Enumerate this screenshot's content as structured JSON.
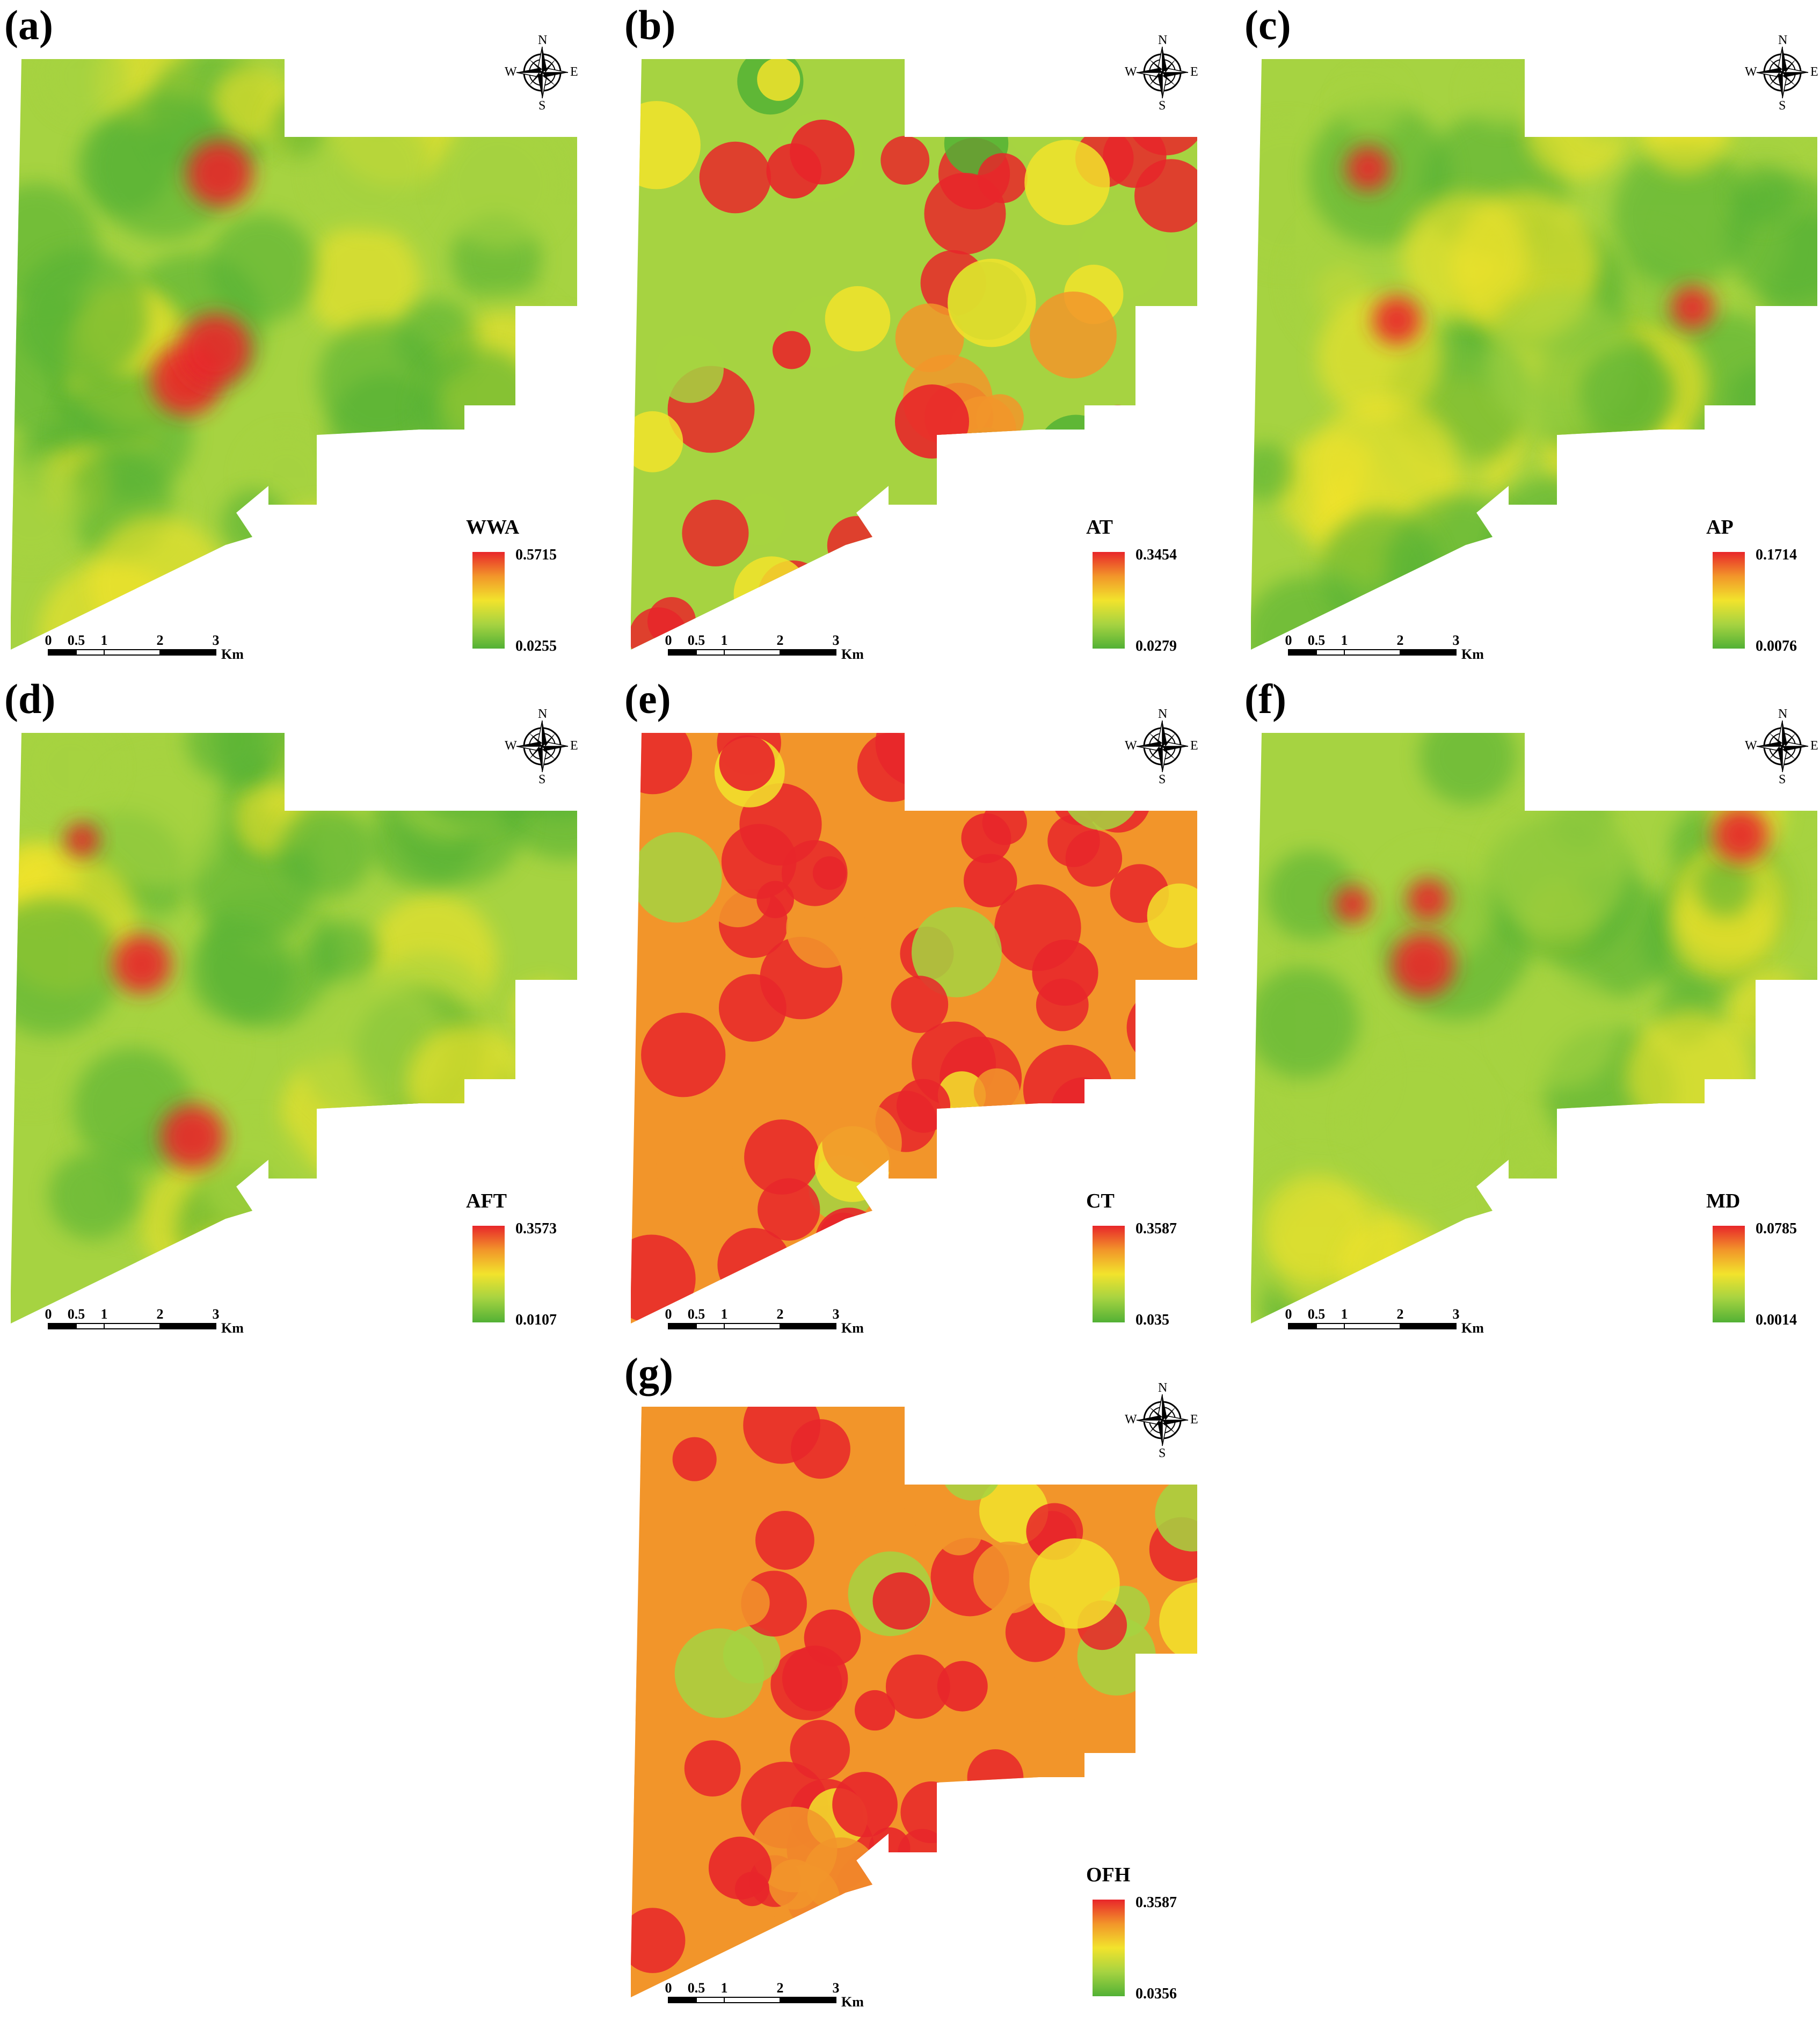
{
  "colors": {
    "low": "#52b135",
    "midlow": "#a6d341",
    "mid": "#f2e32c",
    "midhigh": "#f2952a",
    "high": "#e8262a"
  },
  "compass": {
    "n": "N",
    "s": "S",
    "e": "E",
    "w": "W"
  },
  "scale_bar": {
    "ticks": [
      "0",
      "0.5",
      "1",
      "2",
      "3"
    ],
    "unit": "Km"
  },
  "panels": [
    {
      "label": "(a)",
      "layer": "WWA",
      "max": "0.5715",
      "min": "0.0255"
    },
    {
      "label": "(b)",
      "layer": "AT",
      "max": "0.3454",
      "min": "0.0279"
    },
    {
      "label": "(c)",
      "layer": "AP",
      "max": "0.1714",
      "min": "0.0076"
    },
    {
      "label": "(d)",
      "layer": "AFT",
      "max": "0.3573",
      "min": "0.0107"
    },
    {
      "label": "(e)",
      "layer": "CT",
      "max": "0.3587",
      "min": "0.035"
    },
    {
      "label": "(f)",
      "layer": "MD",
      "max": "0.0785",
      "min": "0.0014"
    },
    {
      "label": "(g)",
      "layer": "OFH",
      "max": "0.3587",
      "min": "0.0356"
    }
  ]
}
